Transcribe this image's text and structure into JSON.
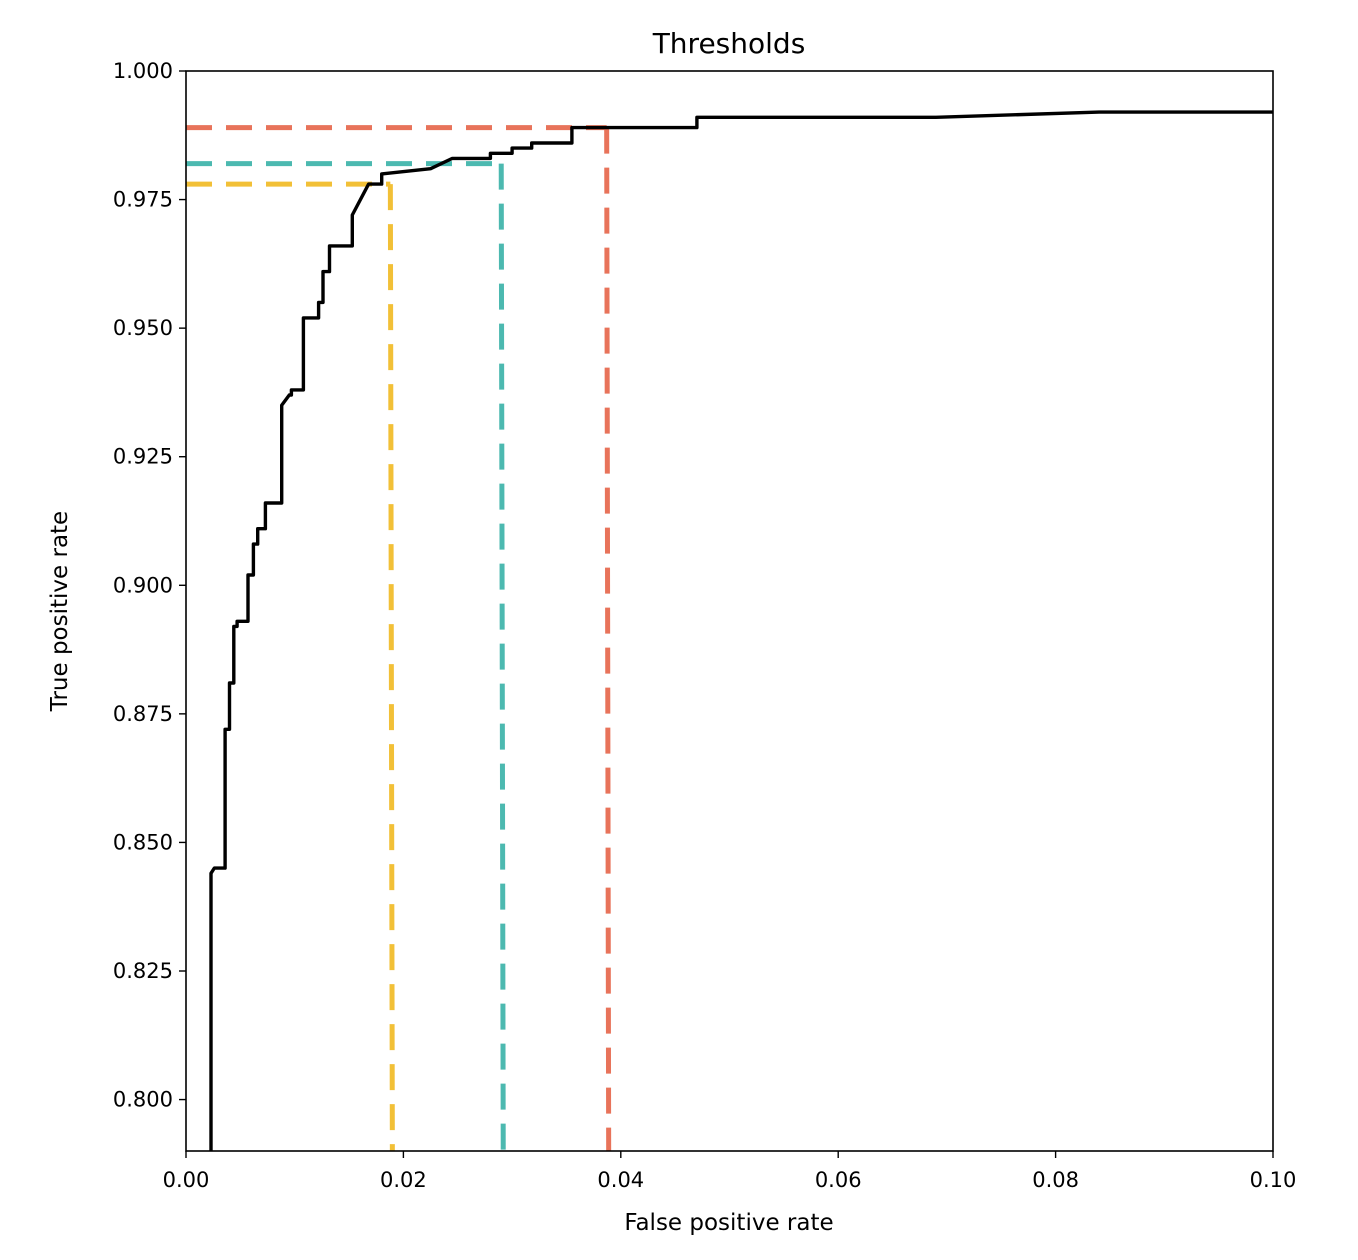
{
  "chart_data": {
    "type": "line",
    "title": "Thresholds",
    "xlabel": "False positive rate",
    "ylabel": "True positive rate",
    "xlim": [
      0.0,
      0.1
    ],
    "ylim": [
      0.79,
      1.0
    ],
    "x_ticks": [
      "0.00",
      "0.02",
      "0.04",
      "0.06",
      "0.08",
      "0.10"
    ],
    "y_ticks": [
      "0.800",
      "0.825",
      "0.850",
      "0.875",
      "0.900",
      "0.925",
      "0.950",
      "0.975",
      "1.000"
    ],
    "grid": false,
    "series": [
      {
        "color": "#000000",
        "x": [
          0.0023,
          0.0023,
          0.0026,
          0.0026,
          0.0028,
          0.0036,
          0.0036,
          0.004,
          0.004,
          0.0044,
          0.0044,
          0.0047,
          0.0047,
          0.0057,
          0.0057,
          0.0062,
          0.0062,
          0.0066,
          0.0066,
          0.0073,
          0.0073,
          0.008,
          0.008,
          0.0088,
          0.0088,
          0.0095,
          0.0097,
          0.0097,
          0.0108,
          0.0108,
          0.0122,
          0.0122,
          0.0126,
          0.0126,
          0.0132,
          0.0132,
          0.0135,
          0.0135,
          0.0153,
          0.0153,
          0.0168,
          0.018,
          0.018,
          0.0225,
          0.0245,
          0.028,
          0.028,
          0.03,
          0.03,
          0.0318,
          0.0318,
          0.0355,
          0.0355,
          0.047,
          0.047,
          0.069,
          0.084,
          0.1
        ],
        "y": [
          0.79,
          0.844,
          0.845,
          0.845,
          0.845,
          0.845,
          0.872,
          0.872,
          0.881,
          0.881,
          0.892,
          0.892,
          0.893,
          0.893,
          0.902,
          0.902,
          0.908,
          0.908,
          0.911,
          0.911,
          0.916,
          0.916,
          0.916,
          0.916,
          0.935,
          0.937,
          0.937,
          0.938,
          0.938,
          0.952,
          0.952,
          0.955,
          0.955,
          0.961,
          0.961,
          0.966,
          0.966,
          0.966,
          0.966,
          0.972,
          0.978,
          0.978,
          0.98,
          0.981,
          0.983,
          0.983,
          0.984,
          0.984,
          0.985,
          0.985,
          0.986,
          0.986,
          0.989,
          0.989,
          0.991,
          0.991,
          0.992,
          0.992
        ]
      }
    ],
    "thresholds": [
      {
        "color": "#f2c037",
        "fpr": 0.0188,
        "tpr": 0.978
      },
      {
        "color": "#4cb9b0",
        "fpr": 0.029,
        "tpr": 0.982
      },
      {
        "color": "#e8735a",
        "fpr": 0.0387,
        "tpr": 0.989
      }
    ]
  }
}
